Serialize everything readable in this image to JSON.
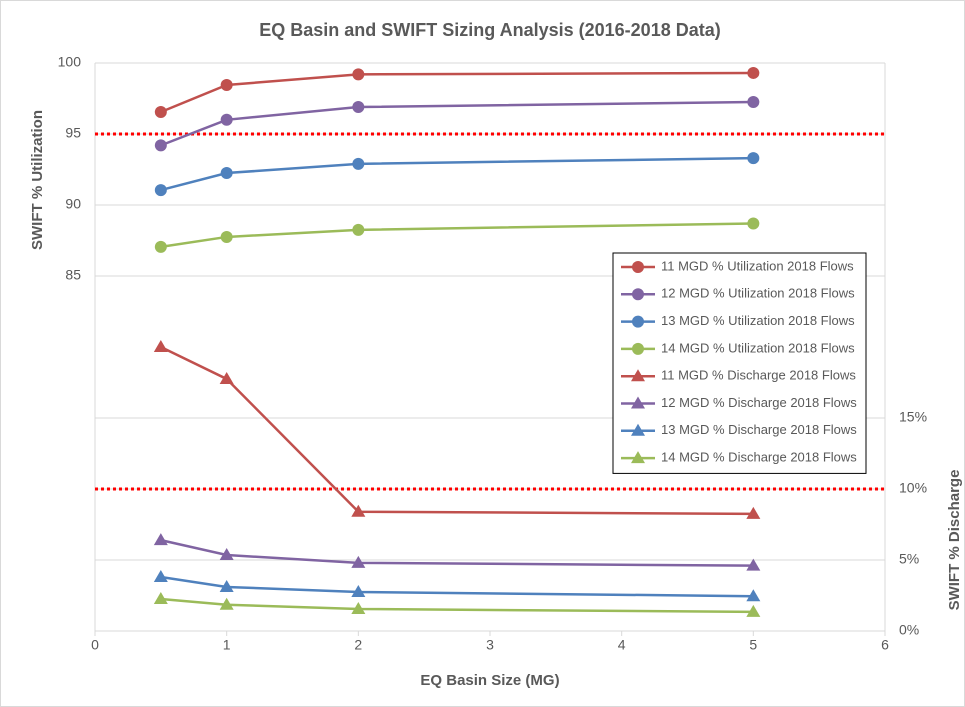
{
  "chart_data": {
    "type": "line",
    "title": "EQ Basin and SWIFT Sizing Analysis (2016-2018 Data)",
    "x_label": "EQ Basin Size (MG)",
    "y_label": "SWIFT % Utilization",
    "y2_label": "SWIFT % Discharge",
    "xlim": [
      0,
      6
    ],
    "xticks": [
      0,
      1,
      2,
      3,
      4,
      5,
      6
    ],
    "ylim": [
      60,
      100
    ],
    "yticks": [
      85,
      90,
      95,
      100
    ],
    "y2lim": [
      0,
      40
    ],
    "y2ticks": [
      {
        "value": 0,
        "label": "0%"
      },
      {
        "value": 5,
        "label": "5%"
      },
      {
        "value": 10,
        "label": "10%"
      },
      {
        "value": 15,
        "label": "15%"
      }
    ],
    "grid": true,
    "reference_lines": [
      {
        "value": 95,
        "axis": "y",
        "color": "#ff0000"
      },
      {
        "value": 10,
        "axis": "y2",
        "color": "#ff0000"
      }
    ],
    "x": [
      0.5,
      1,
      2,
      5
    ],
    "series": [
      {
        "name": "11 MGD % Utilization 2018 Flows",
        "color": "#c0504d",
        "marker": "circle",
        "values": [
          96.55,
          98.45,
          99.2,
          99.3
        ]
      },
      {
        "name": "12 MGD % Utilization 2018 Flows",
        "color": "#8064a2",
        "marker": "circle",
        "values": [
          94.2,
          96.0,
          96.9,
          97.25
        ]
      },
      {
        "name": "13 MGD % Utilization 2018 Flows",
        "color": "#4f81bd",
        "marker": "circle",
        "values": [
          91.05,
          92.25,
          92.9,
          93.3
        ]
      },
      {
        "name": "14 MGD % Utilization 2018 Flows",
        "color": "#9bbb59",
        "marker": "circle",
        "values": [
          87.05,
          87.75,
          88.25,
          88.7
        ]
      },
      {
        "name": "11 MGD % Discharge 2018 Flows",
        "color": "#c0504d",
        "marker": "triangle",
        "axis": "y2",
        "values": [
          20.0,
          17.75,
          8.4,
          8.25
        ]
      },
      {
        "name": "12 MGD % Discharge 2018 Flows",
        "color": "#8064a2",
        "marker": "triangle",
        "axis": "y2",
        "values": [
          6.4,
          5.35,
          4.8,
          4.6
        ]
      },
      {
        "name": "13 MGD % Discharge 2018 Flows",
        "color": "#4f81bd",
        "marker": "triangle",
        "axis": "y2",
        "values": [
          3.8,
          3.1,
          2.75,
          2.45
        ]
      },
      {
        "name": "14 MGD % Discharge 2018 Flows",
        "color": "#9bbb59",
        "marker": "triangle",
        "axis": "y2",
        "values": [
          2.25,
          1.85,
          1.55,
          1.35
        ]
      }
    ]
  }
}
